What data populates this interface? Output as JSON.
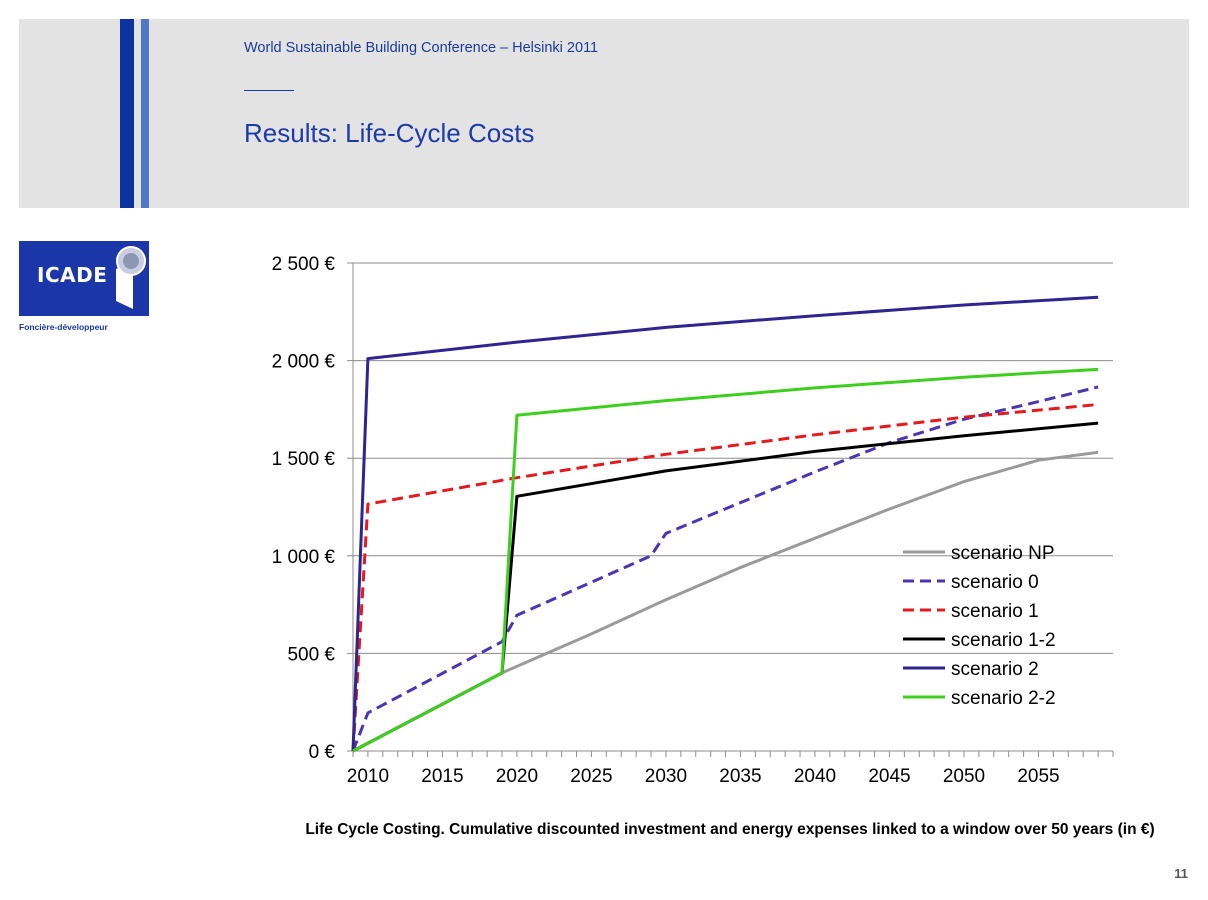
{
  "header": {
    "conference": "World Sustainable Building Conference – Helsinki 2011",
    "title": "Results: Life-Cycle Costs"
  },
  "logo": {
    "text": "ICADE",
    "subtitle": "Foncière-développeur",
    "color": "#1b36a8"
  },
  "caption": "Life Cycle Costing. Cumulative discounted investment and energy expenses linked to a window over 50 years (in €)",
  "page_number": "11",
  "chart_data": {
    "type": "line",
    "title": "",
    "xlabel": "",
    "ylabel": "",
    "xlim": [
      2009,
      2060
    ],
    "ylim": [
      0,
      2500
    ],
    "yticks": [
      0,
      500,
      1000,
      1500,
      2000,
      2500
    ],
    "ytick_labels": [
      "0 €",
      "500 €",
      "1 000 €",
      "1 500 €",
      "2 000 €",
      "2 500 €"
    ],
    "xticks": [
      2010,
      2015,
      2020,
      2025,
      2030,
      2035,
      2040,
      2045,
      2050,
      2055
    ],
    "grid": "horizontal",
    "legend_position": "lower-right",
    "series": [
      {
        "name": "scenario NP",
        "color": "#9a9a9a",
        "dash": false,
        "points": [
          [
            2009,
            0
          ],
          [
            2019,
            400
          ],
          [
            2025,
            600
          ],
          [
            2030,
            775
          ],
          [
            2035,
            940
          ],
          [
            2040,
            1090
          ],
          [
            2045,
            1240
          ],
          [
            2050,
            1380
          ],
          [
            2055,
            1490
          ],
          [
            2059,
            1530
          ]
        ]
      },
      {
        "name": "scenario 0",
        "color": "#4a36b4",
        "dash": true,
        "points": [
          [
            2009,
            0
          ],
          [
            2010,
            195
          ],
          [
            2019,
            560
          ],
          [
            2020,
            695
          ],
          [
            2029,
            1000
          ],
          [
            2030,
            1115
          ],
          [
            2040,
            1430
          ],
          [
            2045,
            1580
          ],
          [
            2050,
            1700
          ],
          [
            2055,
            1790
          ],
          [
            2059,
            1865
          ]
        ]
      },
      {
        "name": "scenario 1",
        "color": "#e41a1c",
        "dash": true,
        "points": [
          [
            2009,
            0
          ],
          [
            2010,
            1265
          ],
          [
            2020,
            1400
          ],
          [
            2030,
            1520
          ],
          [
            2040,
            1620
          ],
          [
            2050,
            1710
          ],
          [
            2059,
            1775
          ]
        ]
      },
      {
        "name": "scenario 1-2",
        "color": "#000000",
        "dash": false,
        "points": [
          [
            2009,
            0
          ],
          [
            2019,
            400
          ],
          [
            2020,
            1305
          ],
          [
            2030,
            1435
          ],
          [
            2040,
            1535
          ],
          [
            2050,
            1615
          ],
          [
            2059,
            1680
          ]
        ]
      },
      {
        "name": "scenario 2",
        "color": "#2e2590",
        "dash": false,
        "points": [
          [
            2009,
            0
          ],
          [
            2010,
            2010
          ],
          [
            2020,
            2095
          ],
          [
            2030,
            2170
          ],
          [
            2040,
            2230
          ],
          [
            2050,
            2285
          ],
          [
            2059,
            2325
          ]
        ]
      },
      {
        "name": "scenario 2-2",
        "color": "#3ecf1e",
        "dash": false,
        "points": [
          [
            2009,
            0
          ],
          [
            2019,
            400
          ],
          [
            2020,
            1720
          ],
          [
            2030,
            1795
          ],
          [
            2040,
            1860
          ],
          [
            2050,
            1915
          ],
          [
            2059,
            1955
          ]
        ]
      }
    ]
  }
}
